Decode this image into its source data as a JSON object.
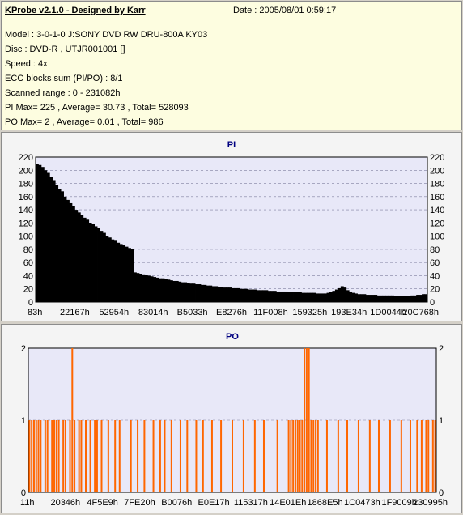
{
  "header": {
    "title": "KProbe v2.1.0 - Designed by Karr",
    "date": "Date : 2005/08/01 0:59:17",
    "lines": [
      "Model : 3-0-1-0 J:SONY    DVD RW DRU-800A  KY03",
      "Disc : DVD-R , UTJR001001 []",
      "Speed : 4x",
      "ECC blocks sum (PI/PO) : 8/1",
      "Scanned range : 0 - 231082h",
      "PI Max= 225 , Average= 30.73 , Total= 528093",
      "PO Max= 2 , Average= 0.01 , Total= 986"
    ]
  },
  "colors": {
    "pi": "#000000",
    "po": "#ff6600",
    "plot_bg": "#e8e8f8",
    "grid": "#8080a0"
  },
  "chart_data": [
    {
      "type": "area",
      "title": "PI",
      "ylim": [
        0,
        220
      ],
      "yticks": [
        0,
        20,
        40,
        60,
        80,
        100,
        120,
        140,
        160,
        180,
        200,
        220
      ],
      "xticks": [
        "83h",
        "22167h",
        "52954h",
        "83014h",
        "B5033h",
        "E8276h",
        "11F008h",
        "159325h",
        "193E34h",
        "1D0044h",
        "20C768h"
      ],
      "grid": "horizontal dashed",
      "series": [
        {
          "values": [
            210,
            208,
            205,
            200,
            196,
            190,
            185,
            178,
            172,
            168,
            160,
            155,
            150,
            146,
            140,
            136,
            132,
            128,
            125,
            120,
            118,
            115,
            112,
            108,
            105,
            100,
            98,
            95,
            93,
            90,
            88,
            86,
            84,
            82,
            80,
            45,
            44,
            43,
            42,
            41,
            40,
            39,
            38,
            37,
            36,
            36,
            35,
            34,
            33,
            32,
            32,
            31,
            30,
            30,
            29,
            28,
            28,
            27,
            27,
            26,
            26,
            25,
            25,
            24,
            24,
            23,
            23,
            22,
            22,
            22,
            21,
            21,
            21,
            20,
            20,
            20,
            19,
            19,
            19,
            18,
            18,
            18,
            18,
            17,
            17,
            17,
            16,
            16,
            16,
            16,
            15,
            15,
            15,
            15,
            15,
            14,
            14,
            14,
            14,
            14,
            13,
            13,
            13,
            13,
            14,
            15,
            17,
            19,
            21,
            24,
            22,
            18,
            16,
            14,
            13,
            12,
            12,
            12,
            11,
            11,
            11,
            11,
            10,
            10,
            10,
            10,
            10,
            10,
            9,
            9,
            9,
            9,
            9,
            9,
            10,
            10,
            11,
            11,
            12,
            12
          ]
        }
      ]
    },
    {
      "type": "bar",
      "title": "PO",
      "ylim": [
        0,
        2
      ],
      "yticks": [
        0,
        1,
        2
      ],
      "xticks": [
        "11h",
        "20346h",
        "4F5E9h",
        "7FE20h",
        "B0076h",
        "E0E17h",
        "115317h",
        "14E01Eh",
        "1868E5h",
        "1C0473h",
        "1F9009h",
        "230995h"
      ],
      "grid": "horizontal dashed",
      "series": [
        {
          "values": [
            1,
            1,
            1,
            1,
            1,
            1,
            0,
            1,
            1,
            0,
            1,
            1,
            1,
            1,
            0,
            1,
            1,
            0,
            1,
            2,
            1,
            0,
            1,
            1,
            0,
            1,
            0,
            1,
            0,
            1,
            1,
            0,
            1,
            0,
            0,
            1,
            0,
            0,
            1,
            0,
            1,
            0,
            0,
            0,
            0,
            1,
            0,
            0,
            1,
            0,
            0,
            1,
            0,
            0,
            0,
            1,
            0,
            0,
            1,
            0,
            1,
            0,
            0,
            1,
            0,
            0,
            0,
            1,
            0,
            0,
            1,
            0,
            0,
            0,
            1,
            0,
            0,
            1,
            0,
            0,
            0,
            1,
            0,
            0,
            0,
            1,
            0,
            0,
            0,
            0,
            1,
            0,
            0,
            0,
            0,
            1,
            0,
            0,
            0,
            0,
            1,
            0,
            0,
            0,
            1,
            0,
            0,
            0,
            0,
            0,
            1,
            0,
            0,
            0,
            0,
            1,
            1,
            1,
            1,
            1,
            1,
            1,
            2,
            2,
            2,
            1,
            1,
            1,
            1,
            0,
            0,
            0,
            1,
            0,
            0,
            0,
            0,
            1,
            0,
            0,
            0,
            1,
            0,
            0,
            0,
            0,
            1,
            0,
            0,
            0,
            0,
            1,
            0,
            0,
            0,
            1,
            0,
            0,
            0,
            0,
            1,
            0,
            0,
            0,
            0,
            1,
            0,
            0,
            0,
            1,
            0,
            0,
            1,
            0,
            1,
            0,
            1,
            1,
            0,
            1,
            1
          ]
        }
      ]
    }
  ]
}
